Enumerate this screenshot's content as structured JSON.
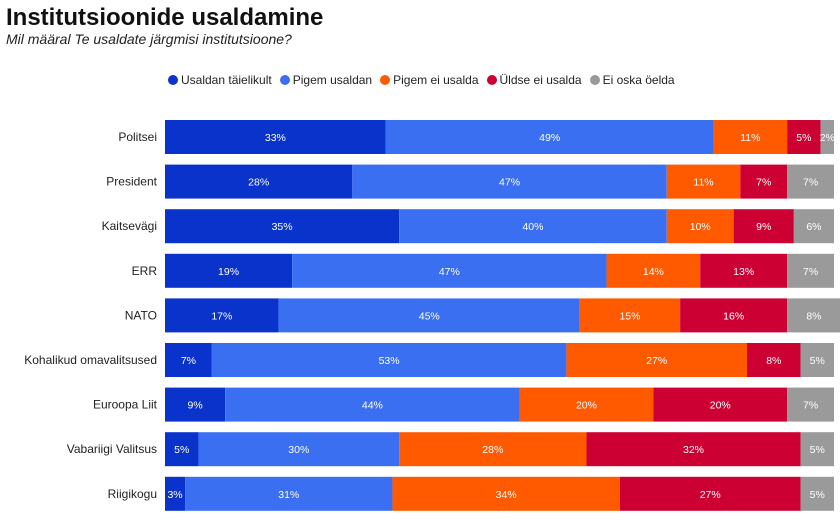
{
  "title": "Institutsioonide usaldamine",
  "subtitle": "Mil määral Te usaldate järgmisi institutsioone?",
  "chart_data": {
    "type": "bar",
    "orientation": "horizontal",
    "stacked": true,
    "title": "Institutsioonide usaldamine",
    "legend_position": "top",
    "categories": [
      "Politsei",
      "President",
      "Kaitsevägi",
      "ERR",
      "NATO",
      "Kohalikud omavalitsused",
      "Euroopa Liit",
      "Vabariigi Valitsus",
      "Riigikogu"
    ],
    "series": [
      {
        "name": "Usaldan täielikult",
        "color": "#0a33cc",
        "values": [
          33,
          28,
          35,
          19,
          17,
          7,
          9,
          5,
          3
        ]
      },
      {
        "name": "Pigem usaldan",
        "color": "#3b6ff2",
        "values": [
          49,
          47,
          40,
          47,
          45,
          53,
          44,
          30,
          31
        ]
      },
      {
        "name": "Pigem ei usalda",
        "color": "#ff5a00",
        "values": [
          11,
          11,
          10,
          14,
          15,
          27,
          20,
          28,
          34
        ]
      },
      {
        "name": "Üldse ei usalda",
        "color": "#cc0033",
        "values": [
          5,
          7,
          9,
          13,
          16,
          8,
          20,
          32,
          27
        ]
      },
      {
        "name": "Ei oska öelda",
        "color": "#9a9a9a",
        "values": [
          2,
          7,
          6,
          7,
          8,
          5,
          7,
          5,
          5
        ]
      }
    ],
    "xlim": [
      0,
      100
    ],
    "value_suffix": "%"
  }
}
